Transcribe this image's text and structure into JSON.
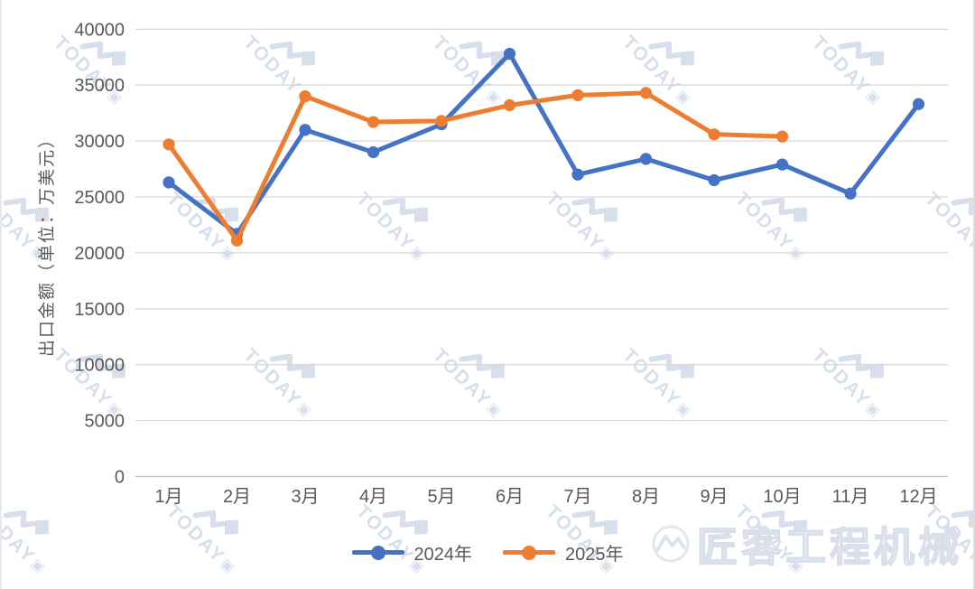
{
  "chart_data": {
    "type": "line",
    "title": "",
    "categories": [
      "1月",
      "2月",
      "3月",
      "4月",
      "5月",
      "6月",
      "7月",
      "8月",
      "9月",
      "10月",
      "11月",
      "12月"
    ],
    "series": [
      {
        "name": "2024年",
        "color": "#4472c4",
        "values": [
          26300,
          21700,
          31000,
          29000,
          31500,
          37800,
          27000,
          28400,
          26500,
          27900,
          25300,
          33300
        ]
      },
      {
        "name": "2025年",
        "color": "#ed7d31",
        "values": [
          29700,
          21100,
          34000,
          31700,
          31800,
          33200,
          34100,
          34300,
          30600,
          30400,
          null,
          null
        ]
      }
    ],
    "xlabel": "",
    "ylabel": "出口金额（单位：万美元）",
    "ylim": [
      0,
      40000
    ],
    "ytick_step": 5000,
    "grid": true,
    "legend_position": "bottom",
    "gridline_color": "#d9d9d9",
    "axis_line_color": "#bfbfbf",
    "tick_label_color": "#595959"
  },
  "watermark": {
    "tile_text": "TODAY",
    "tile_badge": "▣",
    "brand_text": "匠客工程机械",
    "tile_color": "#b7c4dd"
  }
}
